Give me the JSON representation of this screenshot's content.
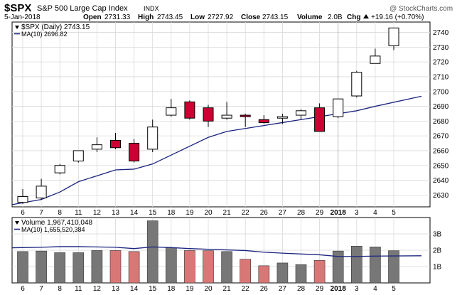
{
  "header": {
    "symbol": "$SPX",
    "name": "S&P 500 Large Cap Index",
    "exchange": "INDX",
    "watermark": "@ StockCharts.com",
    "date": "5-Jan-2018",
    "open_label": "Open",
    "open": "2731.33",
    "high_label": "High",
    "high": "2743.45",
    "low_label": "Low",
    "low": "2727.92",
    "close_label": "Close",
    "close": "2743.15",
    "volume_label": "Volume",
    "volume": "2.0B",
    "chg_label": "Chg",
    "chg": "+19.16 (+0.70%)",
    "chg_icon": "triangle-up-icon",
    "legend_daily": "$SPX (Daily) 2743.15",
    "legend_ma": "MA(10) 2696.82",
    "vol_legend": "Volume 1,967,410,048",
    "vol_ma_legend": "MA(10) 1,655,520,384"
  },
  "colors": {
    "up_fill": "#ffffff",
    "down_fill": "#cc0033",
    "ma_line": "#1a237e",
    "vol_down": "#d97777",
    "vol_up": "#777777",
    "grid": "#d9d9d9",
    "year_line": "#aaaaaa"
  },
  "chart_data": {
    "type": "candlestick",
    "price_ylim": [
      2622,
      2747
    ],
    "price_ticks": [
      2630,
      2640,
      2650,
      2660,
      2670,
      2680,
      2690,
      2700,
      2710,
      2720,
      2730,
      2740
    ],
    "volume_ylim": [
      0,
      4
    ],
    "volume_ticks": [
      1,
      2,
      3
    ],
    "volume_tick_labels": [
      "1B",
      "2B",
      "3B"
    ],
    "categories": [
      "6",
      "7",
      "8",
      "11",
      "12",
      "13",
      "14",
      "15",
      "18",
      "19",
      "20",
      "21",
      "22",
      "26",
      "27",
      "28",
      "29",
      "2018",
      "3",
      "4",
      "5"
    ],
    "year_index": 17,
    "candles": [
      {
        "open": 2625,
        "high": 2634,
        "low": 2624,
        "close": 2629
      },
      {
        "open": 2628,
        "high": 2641,
        "low": 2627,
        "close": 2636
      },
      {
        "open": 2645,
        "high": 2651,
        "low": 2644,
        "close": 2650
      },
      {
        "open": 2653,
        "high": 2660,
        "low": 2652,
        "close": 2660
      },
      {
        "open": 2661,
        "high": 2669,
        "low": 2659,
        "close": 2664
      },
      {
        "open": 2667,
        "high": 2672,
        "low": 2661,
        "close": 2662
      },
      {
        "open": 2665,
        "high": 2668,
        "low": 2652,
        "close": 2653
      },
      {
        "open": 2661,
        "high": 2681,
        "low": 2659,
        "close": 2676
      },
      {
        "open": 2684,
        "high": 2695,
        "low": 2683,
        "close": 2689
      },
      {
        "open": 2693,
        "high": 2694,
        "low": 2681,
        "close": 2682
      },
      {
        "open": 2689,
        "high": 2691,
        "low": 2676,
        "close": 2680
      },
      {
        "open": 2682,
        "high": 2693,
        "low": 2681,
        "close": 2684
      },
      {
        "open": 2684,
        "high": 2685,
        "low": 2676,
        "close": 2683
      },
      {
        "open": 2681,
        "high": 2684,
        "low": 2678,
        "close": 2679
      },
      {
        "open": 2682,
        "high": 2685,
        "low": 2678,
        "close": 2683
      },
      {
        "open": 2684,
        "high": 2688,
        "low": 2681,
        "close": 2687
      },
      {
        "open": 2689,
        "high": 2692,
        "low": 2673,
        "close": 2673
      },
      {
        "open": 2683,
        "high": 2695,
        "low": 2682,
        "close": 2695
      },
      {
        "open": 2697,
        "high": 2714,
        "low": 2696,
        "close": 2713
      },
      {
        "open": 2719,
        "high": 2729,
        "low": 2719,
        "close": 2724
      },
      {
        "open": 2731,
        "high": 2743,
        "low": 2728,
        "close": 2743
      }
    ],
    "ma10": [
      2623.5,
      2627,
      2632,
      2639,
      2643,
      2647,
      2647.5,
      2651,
      2657,
      2663,
      2669,
      2673,
      2675,
      2677,
      2679,
      2681,
      2683,
      2685,
      2687,
      2690,
      2696.82
    ],
    "volume": [
      1.92,
      1.95,
      1.85,
      1.85,
      1.98,
      1.98,
      1.92,
      3.8,
      2.15,
      1.98,
      1.97,
      1.92,
      1.45,
      1.05,
      1.22,
      1.12,
      1.38,
      1.95,
      2.25,
      2.2,
      1.97
    ],
    "volume_ma10": [
      2.15,
      2.18,
      2.22,
      2.22,
      2.2,
      2.18,
      2.1,
      2.2,
      2.16,
      2.1,
      2.06,
      2.02,
      1.98,
      1.88,
      1.82,
      1.77,
      1.72,
      1.62,
      1.62,
      1.64,
      1.66
    ]
  }
}
